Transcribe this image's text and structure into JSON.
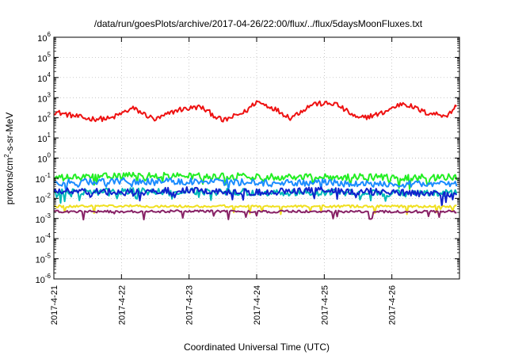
{
  "chart_data": {
    "type": "line",
    "title": "/data/run/goesPlots/archive/2017-04-26/22:00/flux/../flux/5daysMoonFluxes.txt",
    "xlabel": "Coordinated Universal Time (UTC)",
    "ylabel": "protons/cm2-s-sr-MeV",
    "ylabel_parts": {
      "pre": "protons/cm",
      "sup": "2",
      "post": "-s-sr-MeV"
    },
    "y_scale": "log",
    "ylim": [
      1e-06,
      1000000
    ],
    "y_ticks": [
      {
        "base": "10",
        "exp": "-6"
      },
      {
        "base": "10",
        "exp": "-5"
      },
      {
        "base": "10",
        "exp": "-4"
      },
      {
        "base": "10",
        "exp": "-3"
      },
      {
        "base": "10",
        "exp": "-2"
      },
      {
        "base": "10",
        "exp": "-1"
      },
      {
        "base": "10",
        "exp": "0"
      },
      {
        "base": "10",
        "exp": "1"
      },
      {
        "base": "10",
        "exp": "2"
      },
      {
        "base": "10",
        "exp": "3"
      },
      {
        "base": "10",
        "exp": "4"
      },
      {
        "base": "10",
        "exp": "5"
      },
      {
        "base": "10",
        "exp": "6"
      }
    ],
    "xlim": [
      "2017-04-21",
      "2017-04-27"
    ],
    "x_ticks": [
      "2017-4-21",
      "2017-4-22",
      "2017-4-23",
      "2017-4-24",
      "2017-4-25",
      "2017-4-26"
    ],
    "grid": true,
    "legend": "none",
    "series": [
      {
        "color": "#ee1111",
        "x": [
          "2017-04-21",
          "2017-04-21 12:00",
          "2017-04-21 20:00",
          "2017-04-22 04:00",
          "2017-04-22 12:00",
          "2017-04-22 20:00",
          "2017-04-23 04:00",
          "2017-04-23 12:00",
          "2017-04-23 20:00",
          "2017-04-24",
          "2017-04-24 06:00",
          "2017-04-24 12:00",
          "2017-04-24 20:00",
          "2017-04-25 04:00",
          "2017-04-25 12:00",
          "2017-04-25 20:00",
          "2017-04-26 04:00",
          "2017-04-26 12:00",
          "2017-04-26 20:00",
          "2017-04-26 23:00"
        ],
        "values": [
          200,
          90,
          90,
          300,
          80,
          250,
          350,
          70,
          200,
          650,
          300,
          100,
          500,
          500,
          90,
          160,
          550,
          180,
          130,
          450
        ]
      },
      {
        "color": "#22ee22",
        "x": [
          "2017-04-21",
          "2017-04-22",
          "2017-04-23",
          "2017-04-24",
          "2017-04-25",
          "2017-04-26",
          "2017-04-26 23:00"
        ],
        "values": [
          0.1,
          0.13,
          0.13,
          0.12,
          0.12,
          0.11,
          0.11
        ]
      },
      {
        "color": "#1a8cff",
        "x": [
          "2017-04-21",
          "2017-04-22",
          "2017-04-23",
          "2017-04-24",
          "2017-04-25",
          "2017-04-26",
          "2017-04-26 23:00"
        ],
        "values": [
          0.06,
          0.07,
          0.07,
          0.06,
          0.06,
          0.05,
          0.05
        ]
      },
      {
        "color": "#00b8b8",
        "x": [
          "2017-04-21",
          "2017-04-22",
          "2017-04-23",
          "2017-04-24",
          "2017-04-25",
          "2017-04-26",
          "2017-04-26 23:00"
        ],
        "values": [
          0.02,
          0.022,
          0.022,
          0.02,
          0.02,
          0.018,
          0.018
        ]
      },
      {
        "color": "#1122cc",
        "x": [
          "2017-04-21",
          "2017-04-22",
          "2017-04-23",
          "2017-04-24",
          "2017-04-25",
          "2017-04-26",
          "2017-04-26 23:00"
        ],
        "values": [
          0.025,
          0.02,
          0.025,
          0.02,
          0.025,
          0.02,
          0.015
        ]
      },
      {
        "color": "#f0e020",
        "x": [
          "2017-04-21",
          "2017-04-22",
          "2017-04-23",
          "2017-04-24",
          "2017-04-25",
          "2017-04-26",
          "2017-04-26 23:00"
        ],
        "values": [
          0.004,
          0.0042,
          0.004,
          0.0041,
          0.004,
          0.004,
          0.004
        ]
      },
      {
        "color": "#882266",
        "x": [
          "2017-04-21",
          "2017-04-22",
          "2017-04-23",
          "2017-04-24",
          "2017-04-25",
          "2017-04-26",
          "2017-04-26 23:00"
        ],
        "values": [
          0.0022,
          0.0022,
          0.0023,
          0.0022,
          0.0022,
          0.0022,
          0.0022
        ]
      }
    ]
  }
}
